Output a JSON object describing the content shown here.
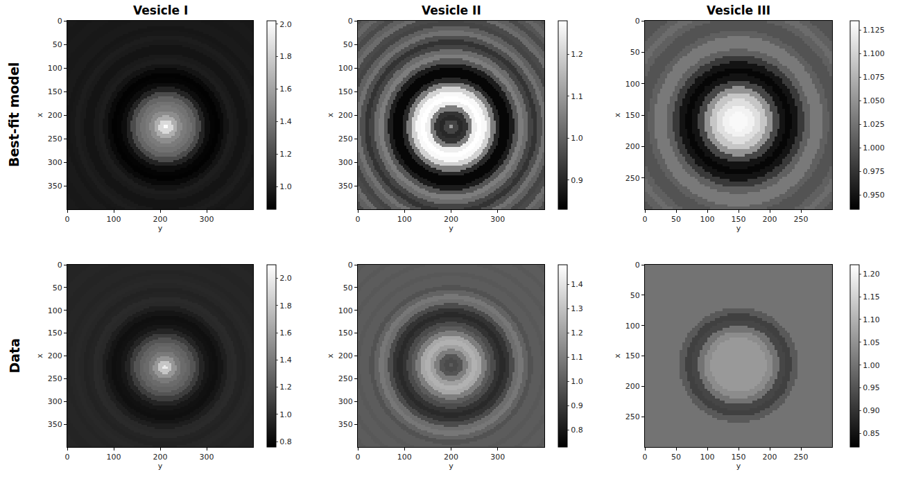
{
  "row_labels": [
    "Best-fit model",
    "Data"
  ],
  "chart_data": [
    {
      "type": "heatmap",
      "title": "Vesicle I",
      "x_label": "y",
      "y_label": "x",
      "color": "gray",
      "grid": false,
      "xlim": [
        0,
        400
      ],
      "ylim": [
        400,
        0
      ],
      "xticks": [
        0,
        100,
        200,
        300
      ],
      "yticks": [
        0,
        50,
        100,
        150,
        200,
        250,
        300,
        350
      ],
      "cells": {
        "size": [
          400,
          400
        ],
        "center": [
          212,
          225
        ],
        "radius_step": 10,
        "radial_profile": [
          2.0,
          1.85,
          1.65,
          1.5,
          1.42,
          1.38,
          1.32,
          1.2,
          1.02,
          0.92,
          0.88,
          0.87,
          0.9,
          0.95,
          0.99,
          0.98,
          0.95,
          0.95,
          0.98,
          0.99,
          0.97,
          0.96,
          0.98,
          0.98,
          0.97,
          0.97,
          0.98,
          0.98,
          0.97,
          0.97,
          0.98
        ]
      },
      "colorbar": {
        "range": [
          0.86,
          2.02
        ],
        "ticks": [
          {
            "value": 1.0,
            "label": "1.0"
          },
          1.2,
          1.4,
          1.6,
          1.8,
          {
            "value": 2.0,
            "label": "2.0"
          }
        ]
      }
    },
    {
      "type": "heatmap",
      "title": "Vesicle II",
      "x_label": "y",
      "y_label": "x",
      "color": "gray",
      "grid": false,
      "xlim": [
        0,
        400
      ],
      "ylim": [
        400,
        0
      ],
      "xticks": [
        0,
        100,
        200,
        300
      ],
      "yticks": [
        0,
        50,
        100,
        150,
        200,
        250,
        300,
        350
      ],
      "cells": {
        "size": [
          400,
          400
        ],
        "center": [
          200,
          225
        ],
        "radius_step": 10,
        "radial_profile": [
          1.1,
          0.95,
          0.9,
          0.92,
          1.05,
          1.25,
          1.28,
          1.27,
          1.2,
          1.05,
          0.9,
          0.84,
          0.84,
          0.88,
          0.98,
          1.05,
          1.02,
          0.95,
          0.92,
          0.97,
          1.03,
          1.0,
          0.95,
          0.96,
          1.02,
          1.0,
          0.96,
          0.98,
          1.01,
          0.99,
          0.97
        ]
      },
      "colorbar": {
        "range": [
          0.83,
          1.28
        ],
        "ticks": [
          0.9,
          {
            "value": 1.0,
            "label": "1.0"
          },
          1.1,
          1.2
        ]
      }
    },
    {
      "type": "heatmap",
      "title": "Vesicle III",
      "x_label": "y",
      "y_label": "x",
      "color": "gray",
      "grid": false,
      "xlim": [
        0,
        300
      ],
      "ylim": [
        300,
        0
      ],
      "xticks": [
        0,
        50,
        100,
        150,
        200,
        250
      ],
      "yticks": [
        0,
        50,
        100,
        150,
        200,
        250
      ],
      "cells": {
        "size": [
          300,
          300
        ],
        "center": [
          150,
          160
        ],
        "radius_step": 10,
        "radial_profile": [
          1.13,
          1.13,
          1.125,
          1.11,
          1.09,
          1.05,
          0.99,
          0.95,
          0.94,
          0.95,
          0.98,
          1.01,
          1.03,
          1.03,
          1.01,
          1.0,
          1.0,
          1.01,
          1.02,
          1.01,
          1.0,
          1.0,
          1.0
        ]
      },
      "colorbar": {
        "range": [
          0.935,
          1.135
        ],
        "ticks": [
          {
            "value": 0.95,
            "label": "0.950"
          },
          0.975,
          {
            "value": 1.0,
            "label": "1.000"
          },
          1.025,
          {
            "value": 1.05,
            "label": "1.050"
          },
          1.075,
          {
            "value": 1.1,
            "label": "1.100"
          },
          1.125
        ]
      }
    },
    {
      "type": "heatmap",
      "x_label": "y",
      "y_label": "x",
      "color": "gray",
      "grid": false,
      "xlim": [
        0,
        400
      ],
      "ylim": [
        400,
        0
      ],
      "xticks": [
        0,
        100,
        200,
        300
      ],
      "yticks": [
        0,
        50,
        100,
        150,
        200,
        250,
        300,
        350
      ],
      "cells": {
        "size": [
          400,
          400
        ],
        "center": [
          210,
          225
        ],
        "radius_step": 10,
        "radial_profile": [
          2.0,
          1.8,
          1.55,
          1.4,
          1.32,
          1.28,
          1.2,
          1.08,
          0.95,
          0.88,
          0.85,
          0.84,
          0.87,
          0.92,
          0.97,
          0.98,
          0.95,
          0.94,
          0.96,
          0.97,
          0.96,
          0.95,
          0.96,
          0.96,
          0.95,
          0.95,
          0.96,
          0.96,
          0.95,
          0.95,
          0.95
        ]
      },
      "colorbar": {
        "range": [
          0.76,
          2.1
        ],
        "ticks": [
          0.8,
          {
            "value": 1.0,
            "label": "1.0"
          },
          1.2,
          1.4,
          1.6,
          1.8,
          {
            "value": 2.0,
            "label": "2.0"
          }
        ]
      }
    },
    {
      "type": "heatmap",
      "x_label": "y",
      "y_label": "x",
      "color": "gray",
      "grid": false,
      "xlim": [
        0,
        400
      ],
      "ylim": [
        400,
        0
      ],
      "xticks": [
        0,
        100,
        200,
        300
      ],
      "yticks": [
        0,
        50,
        100,
        150,
        200,
        250,
        300,
        350
      ],
      "cells": {
        "size": [
          400,
          400
        ],
        "center": [
          200,
          220
        ],
        "radius_step": 10,
        "radial_profile": [
          1.0,
          0.95,
          0.98,
          1.1,
          1.2,
          1.25,
          1.22,
          1.1,
          1.0,
          0.95,
          0.88,
          0.85,
          0.88,
          0.95,
          1.05,
          1.08,
          1.02,
          0.97,
          1.0,
          1.0,
          0.99,
          1.0,
          1.0,
          0.99,
          1.0,
          1.0,
          0.99,
          1.0,
          1.0,
          0.99,
          1.0
        ]
      },
      "colorbar": {
        "range": [
          0.73,
          1.48
        ],
        "ticks": [
          0.8,
          0.9,
          {
            "value": 1.0,
            "label": "1.0"
          },
          1.1,
          1.2,
          1.3,
          1.4
        ]
      }
    },
    {
      "type": "heatmap",
      "x_label": "y",
      "y_label": "x",
      "color": "gray",
      "grid": false,
      "xlim": [
        0,
        300
      ],
      "ylim": [
        300,
        0
      ],
      "xticks": [
        0,
        50,
        100,
        150,
        200,
        250
      ],
      "yticks": [
        0,
        50,
        100,
        150,
        200,
        250
      ],
      "cells": {
        "size": [
          300,
          300
        ],
        "center": [
          150,
          165
        ],
        "radius_step": 10,
        "radial_profile": [
          1.06,
          1.06,
          1.06,
          1.06,
          1.06,
          1.04,
          1.0,
          0.93,
          0.92,
          0.96,
          1.0,
          1.0,
          1.0,
          1.0,
          1.0,
          1.0,
          1.0,
          1.0,
          1.0,
          1.0,
          1.0,
          1.0,
          1.0
        ]
      },
      "colorbar": {
        "range": [
          0.82,
          1.22
        ],
        "ticks": [
          0.85,
          {
            "value": 0.9,
            "label": "0.90"
          },
          0.95,
          {
            "value": 1.0,
            "label": "1.00"
          },
          1.05,
          {
            "value": 1.1,
            "label": "1.10"
          },
          1.15,
          {
            "value": 1.2,
            "label": "1.20"
          }
        ]
      }
    }
  ]
}
